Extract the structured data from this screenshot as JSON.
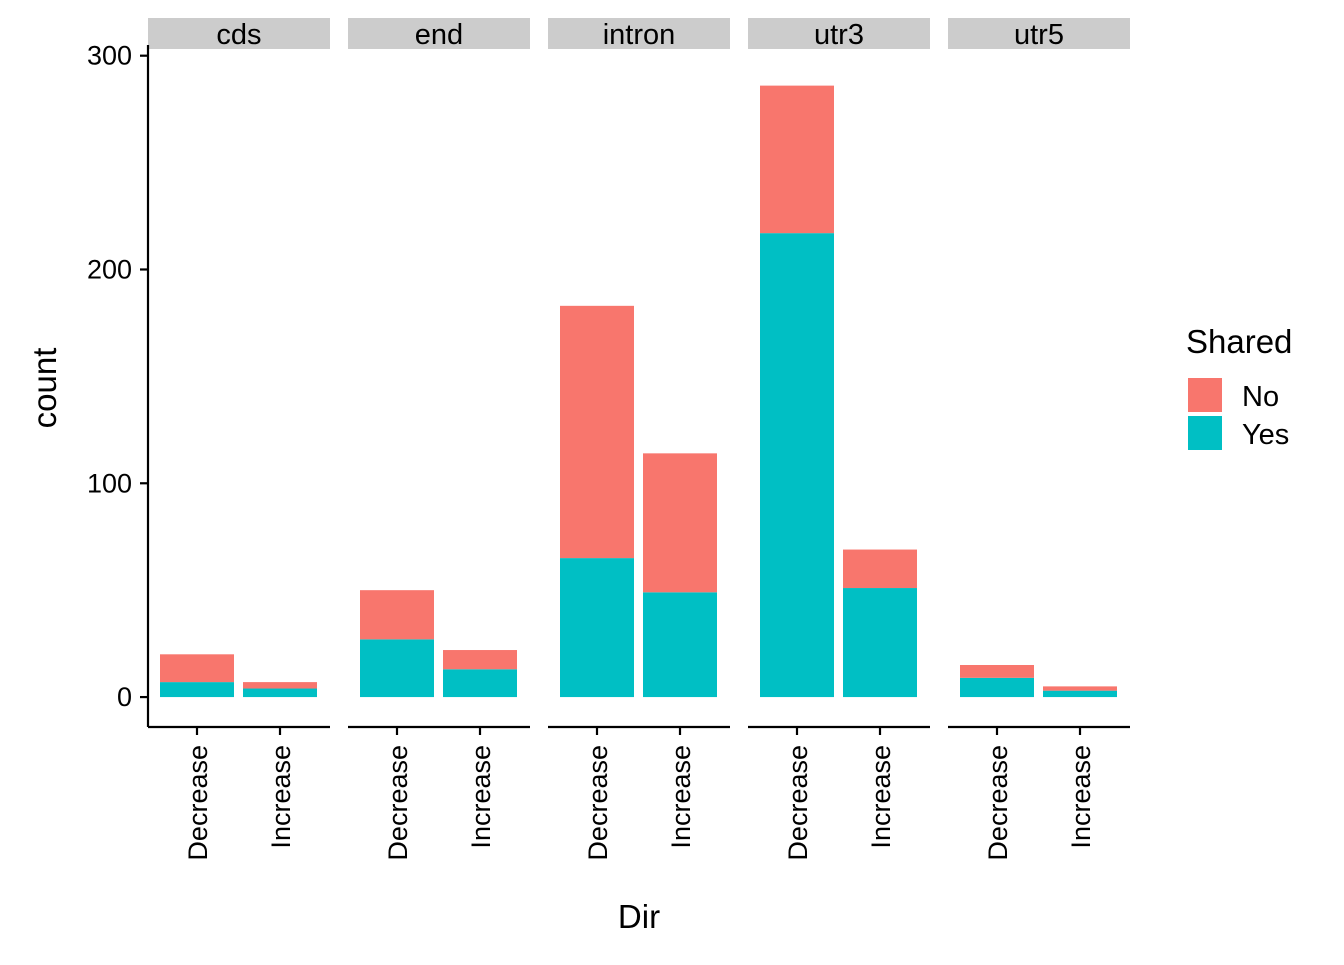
{
  "colors": {
    "No": "#F8766D",
    "Yes": "#00BFC4",
    "strip_bg": "#CCCCCC",
    "axis": "#000000"
  },
  "legend": {
    "title": "Shared",
    "items": [
      {
        "label": "No",
        "color": "#F8766D"
      },
      {
        "label": "Yes",
        "color": "#00BFC4"
      }
    ]
  },
  "chart_data": {
    "type": "bar",
    "stacked": true,
    "facets": [
      "cds",
      "end",
      "intron",
      "utr3",
      "utr5"
    ],
    "categories": [
      "Decrease",
      "Increase"
    ],
    "series": [
      {
        "name": "Yes",
        "values": {
          "cds": [
            7,
            4
          ],
          "end": [
            27,
            13
          ],
          "intron": [
            65,
            49
          ],
          "utr3": [
            217,
            51
          ],
          "utr5": [
            9,
            3
          ]
        }
      },
      {
        "name": "No",
        "values": {
          "cds": [
            13,
            3
          ],
          "end": [
            23,
            9
          ],
          "intron": [
            118,
            65
          ],
          "utr3": [
            69,
            18
          ],
          "utr5": [
            6,
            2
          ]
        }
      }
    ],
    "xlabel": "Dir",
    "ylabel": "count",
    "yticks": [
      0,
      100,
      200,
      300
    ],
    "ylim": [
      -14,
      305
    ],
    "grid": false,
    "legend_position": "right"
  }
}
